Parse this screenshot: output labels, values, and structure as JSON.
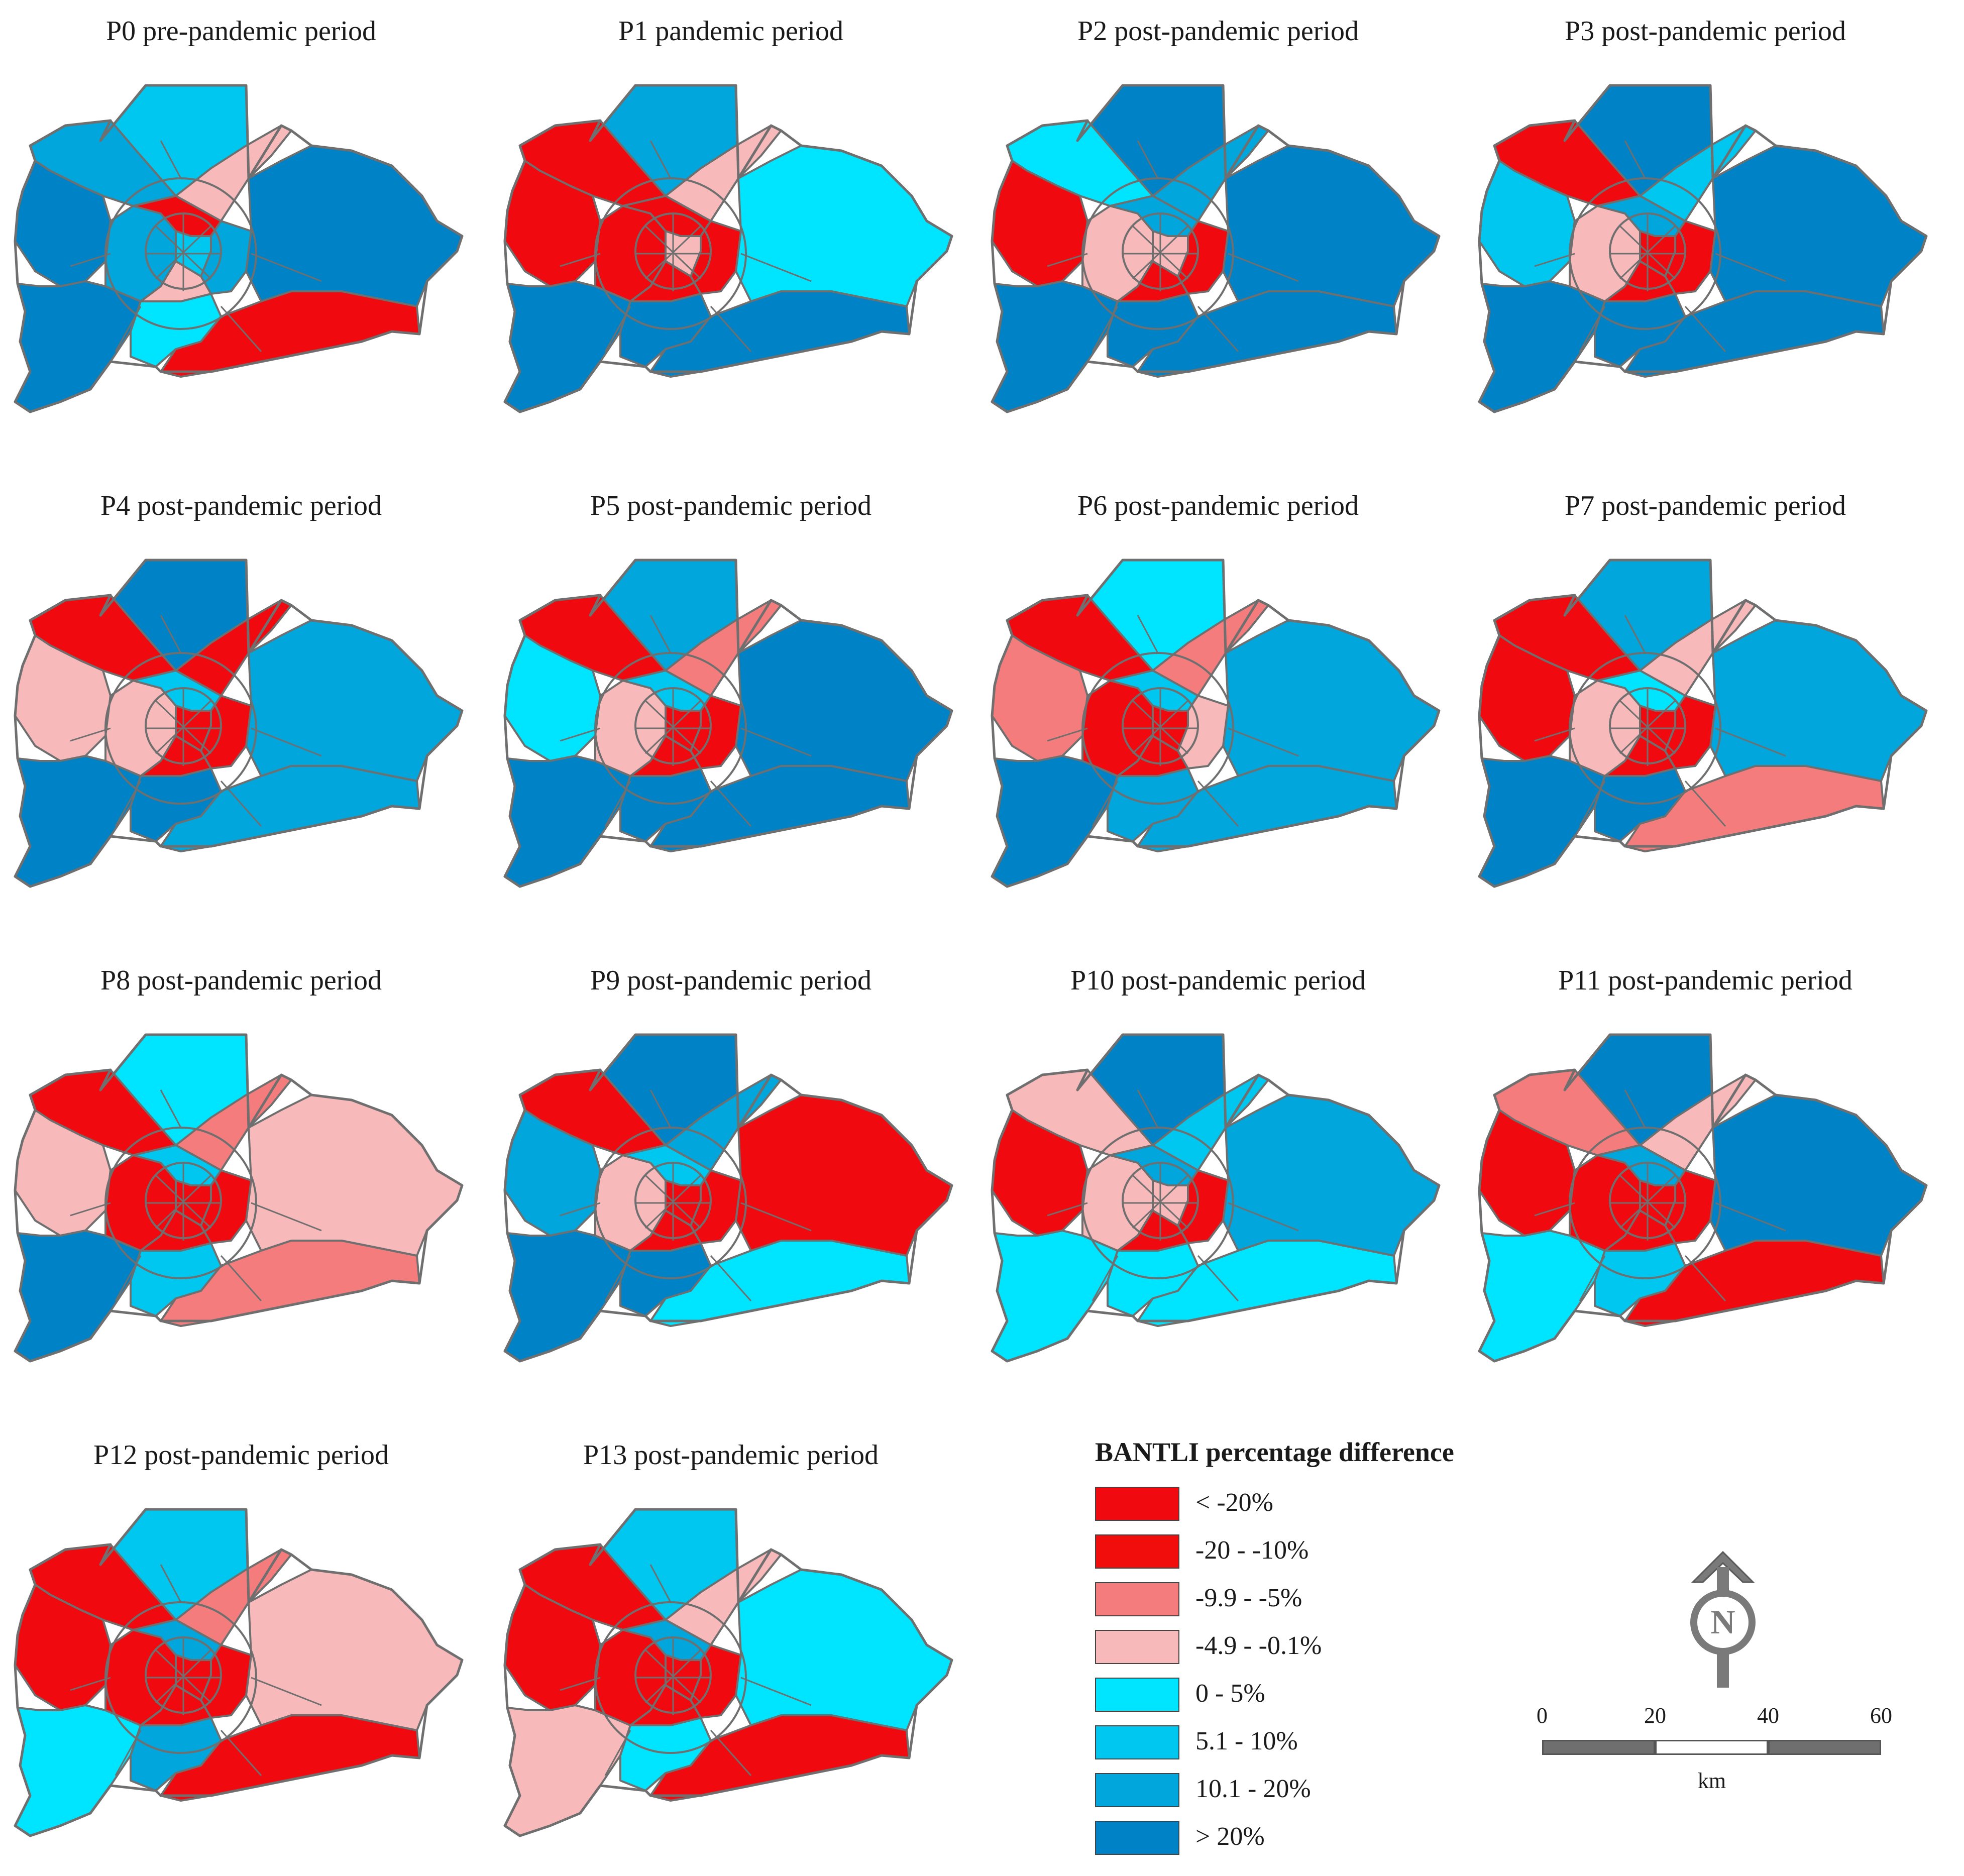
{
  "colors": {
    "c_lt_m20": "#f00a0f",
    "c_m20_m10": "#f20d0d",
    "c_m9_m5": "#f47c7c",
    "c_m4_0": "#f7b9ba",
    "c_0_5": "#00e5ff",
    "c_5_10": "#00c7ef",
    "c_10_20": "#00a6dc",
    "c_gt20": "#0082c6"
  },
  "panels": [
    {
      "title": "P0 pre-pandemic period",
      "fills": {
        "north": "c_5_10",
        "nw": "c_10_20",
        "west": "c_gt20",
        "sw": "c_gt20",
        "south": "c_0_5",
        "se": "c_lt_m20",
        "east": "c_gt20",
        "ne_strip": "c_m4_0",
        "inner_w": "c_10_20",
        "inner_n": "c_lt_m20",
        "inner_e": "c_10_20",
        "inner_s": "c_m4_0",
        "core": "c_5_10"
      }
    },
    {
      "title": "P1 pandemic period",
      "fills": {
        "north": "c_10_20",
        "nw": "c_lt_m20",
        "west": "c_lt_m20",
        "sw": "c_gt20",
        "south": "c_gt20",
        "se": "c_gt20",
        "east": "c_0_5",
        "ne_strip": "c_m4_0",
        "inner_w": "c_lt_m20",
        "inner_n": "c_lt_m20",
        "inner_e": "c_lt_m20",
        "inner_s": "c_lt_m20",
        "core": "c_m4_0"
      }
    },
    {
      "title": "P2 post-pandemic period",
      "fills": {
        "north": "c_gt20",
        "nw": "c_0_5",
        "west": "c_lt_m20",
        "sw": "c_gt20",
        "south": "c_gt20",
        "se": "c_gt20",
        "east": "c_gt20",
        "ne_strip": "c_10_20",
        "inner_w": "c_m4_0",
        "inner_n": "c_10_20",
        "inner_e": "c_lt_m20",
        "inner_s": "c_lt_m20",
        "core": "c_m4_0"
      }
    },
    {
      "title": "P3 post-pandemic period",
      "fills": {
        "north": "c_gt20",
        "nw": "c_lt_m20",
        "west": "c_5_10",
        "sw": "c_gt20",
        "south": "c_gt20",
        "se": "c_gt20",
        "east": "c_gt20",
        "ne_strip": "c_5_10",
        "inner_w": "c_m4_0",
        "inner_n": "c_10_20",
        "inner_e": "c_lt_m20",
        "inner_s": "c_lt_m20",
        "core": "c_lt_m20"
      }
    },
    {
      "title": "P4 post-pandemic period",
      "fills": {
        "north": "c_gt20",
        "nw": "c_lt_m20",
        "west": "c_m4_0",
        "sw": "c_gt20",
        "south": "c_gt20",
        "se": "c_10_20",
        "east": "c_10_20",
        "ne_strip": "c_lt_m20",
        "inner_w": "c_m4_0",
        "inner_n": "c_5_10",
        "inner_e": "c_lt_m20",
        "inner_s": "c_lt_m20",
        "core": "c_lt_m20"
      }
    },
    {
      "title": "P5 post-pandemic period",
      "fills": {
        "north": "c_10_20",
        "nw": "c_lt_m20",
        "west": "c_0_5",
        "sw": "c_gt20",
        "south": "c_gt20",
        "se": "c_gt20",
        "east": "c_gt20",
        "ne_strip": "c_m9_m5",
        "inner_w": "c_m4_0",
        "inner_n": "c_5_10",
        "inner_e": "c_lt_m20",
        "inner_s": "c_lt_m20",
        "core": "c_lt_m20"
      }
    },
    {
      "title": "P6 post-pandemic period",
      "fills": {
        "north": "c_0_5",
        "nw": "c_lt_m20",
        "west": "c_m9_m5",
        "sw": "c_gt20",
        "south": "c_10_20",
        "se": "c_10_20",
        "east": "c_10_20",
        "ne_strip": "c_m9_m5",
        "inner_w": "c_lt_m20",
        "inner_n": "c_5_10",
        "inner_e": "c_m4_0",
        "inner_s": "c_lt_m20",
        "core": "c_lt_m20"
      }
    },
    {
      "title": "P7 post-pandemic period",
      "fills": {
        "north": "c_10_20",
        "nw": "c_lt_m20",
        "west": "c_lt_m20",
        "sw": "c_gt20",
        "south": "c_gt20",
        "se": "c_m9_m5",
        "east": "c_10_20",
        "ne_strip": "c_m4_0",
        "inner_w": "c_m4_0",
        "inner_n": "c_0_5",
        "inner_e": "c_lt_m20",
        "inner_s": "c_lt_m20",
        "core": "c_lt_m20"
      }
    },
    {
      "title": "P8 post-pandemic period",
      "fills": {
        "north": "c_0_5",
        "nw": "c_lt_m20",
        "west": "c_m4_0",
        "sw": "c_gt20",
        "south": "c_5_10",
        "se": "c_m9_m5",
        "east": "c_m4_0",
        "ne_strip": "c_m9_m5",
        "inner_w": "c_lt_m20",
        "inner_n": "c_5_10",
        "inner_e": "c_lt_m20",
        "inner_s": "c_lt_m20",
        "core": "c_lt_m20"
      }
    },
    {
      "title": "P9 post-pandemic period",
      "fills": {
        "north": "c_gt20",
        "nw": "c_lt_m20",
        "west": "c_10_20",
        "sw": "c_gt20",
        "south": "c_gt20",
        "se": "c_0_5",
        "east": "c_lt_m20",
        "ne_strip": "c_10_20",
        "inner_w": "c_m4_0",
        "inner_n": "c_5_10",
        "inner_e": "c_lt_m20",
        "inner_s": "c_lt_m20",
        "core": "c_lt_m20"
      }
    },
    {
      "title": "P10 post-pandemic period",
      "fills": {
        "north": "c_gt20",
        "nw": "c_m4_0",
        "west": "c_lt_m20",
        "sw": "c_0_5",
        "south": "c_0_5",
        "se": "c_0_5",
        "east": "c_10_20",
        "ne_strip": "c_5_10",
        "inner_w": "c_m4_0",
        "inner_n": "c_10_20",
        "inner_e": "c_lt_m20",
        "inner_s": "c_lt_m20",
        "core": "c_m4_0"
      }
    },
    {
      "title": "P11 post-pandemic period",
      "fills": {
        "north": "c_gt20",
        "nw": "c_m9_m5",
        "west": "c_lt_m20",
        "sw": "c_0_5",
        "south": "c_5_10",
        "se": "c_lt_m20",
        "east": "c_gt20",
        "ne_strip": "c_m4_0",
        "inner_w": "c_lt_m20",
        "inner_n": "c_10_20",
        "inner_e": "c_lt_m20",
        "inner_s": "c_lt_m20",
        "core": "c_lt_m20"
      }
    },
    {
      "title": "P12 post-pandemic period",
      "fills": {
        "north": "c_5_10",
        "nw": "c_lt_m20",
        "west": "c_lt_m20",
        "sw": "c_0_5",
        "south": "c_10_20",
        "se": "c_lt_m20",
        "east": "c_m4_0",
        "ne_strip": "c_m9_m5",
        "inner_w": "c_lt_m20",
        "inner_n": "c_10_20",
        "inner_e": "c_lt_m20",
        "inner_s": "c_lt_m20",
        "core": "c_lt_m20"
      }
    },
    {
      "title": "P13 post-pandemic period",
      "fills": {
        "north": "c_5_10",
        "nw": "c_lt_m20",
        "west": "c_lt_m20",
        "sw": "c_m4_0",
        "south": "c_0_5",
        "se": "c_lt_m20",
        "east": "c_0_5",
        "ne_strip": "c_m4_0",
        "inner_w": "c_lt_m20",
        "inner_n": "c_10_20",
        "inner_e": "c_lt_m20",
        "inner_s": "c_lt_m20",
        "core": "c_lt_m20"
      }
    }
  ],
  "legend": {
    "title": "BANTLI percentage difference",
    "items": [
      {
        "label": "< -20%",
        "color": "#f00a0f"
      },
      {
        "label": "-20 - -10%",
        "color": "#f20d0d"
      },
      {
        "label": "-9.9 - -5%",
        "color": "#f47c7c"
      },
      {
        "label": "-4.9 - -0.1%",
        "color": "#f7b9ba"
      },
      {
        "label": "0 - 5%",
        "color": "#00e5ff"
      },
      {
        "label": "5.1 - 10%",
        "color": "#00c7ef"
      },
      {
        "label": "10.1 - 20%",
        "color": "#00a6dc"
      },
      {
        "label": "> 20%",
        "color": "#0082c6"
      }
    ]
  },
  "north_arrow": {
    "letter": "N"
  },
  "scale": {
    "ticks": [
      "0",
      "20",
      "40",
      "60"
    ],
    "unit": "km"
  }
}
